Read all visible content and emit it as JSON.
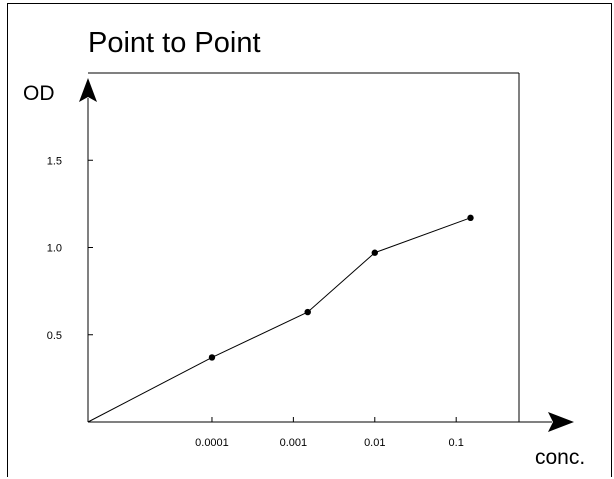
{
  "chart_data": {
    "type": "line",
    "title": "Point to Point",
    "xlabel": "conc.",
    "ylabel": "OD",
    "x_scale": "log",
    "x_ticks": [
      {
        "value": 0.0001,
        "label": "0.0001"
      },
      {
        "value": 0.001,
        "label": "0.001"
      },
      {
        "value": 0.01,
        "label": "0.01"
      },
      {
        "value": 0.1,
        "label": "0.1"
      }
    ],
    "y_ticks": [
      {
        "value": 0.5,
        "label": "0.5"
      },
      {
        "value": 1.0,
        "label": "1.0"
      },
      {
        "value": 1.5,
        "label": "1.5"
      }
    ],
    "xlim": [
      3e-06,
      2.8
    ],
    "ylim": [
      0,
      2.0
    ],
    "grid": false,
    "legend": false,
    "line_start": {
      "x": 3e-06,
      "y": 0
    },
    "series": [
      {
        "color": "#000000",
        "points": [
          {
            "x": 0.0001,
            "y": 0.37
          },
          {
            "x": 0.0015,
            "y": 0.63
          },
          {
            "x": 0.01,
            "y": 0.97
          },
          {
            "x": 0.15,
            "y": 1.17
          }
        ]
      }
    ]
  }
}
